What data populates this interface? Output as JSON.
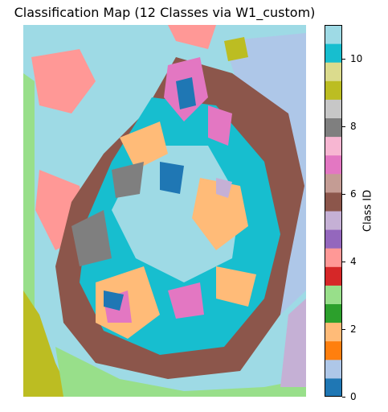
{
  "title": "Classification Map (12 Classes via W1_custom)",
  "colorbar": {
    "label": "Class ID",
    "range": [
      0,
      11
    ],
    "ticks": [
      {
        "label": "0",
        "value": 0
      },
      {
        "label": "2",
        "value": 2
      },
      {
        "label": "4",
        "value": 4
      },
      {
        "label": "6",
        "value": 6
      },
      {
        "label": "8",
        "value": 8
      },
      {
        "label": "10",
        "value": 10
      }
    ],
    "class_colors": [
      "#1f77b4",
      "#aec7e8",
      "#ff7f0e",
      "#ffbb78",
      "#2ca02c",
      "#98df8a",
      "#d62728",
      "#ff9896",
      "#9467bd",
      "#c5b0d5",
      "#8c564b",
      "#c49c94",
      "#e377c2",
      "#f7b6d2",
      "#7f7f7f",
      "#c7c7c7",
      "#bcbd22",
      "#dbdb8d",
      "#17becf",
      "#9edae5"
    ]
  }
}
